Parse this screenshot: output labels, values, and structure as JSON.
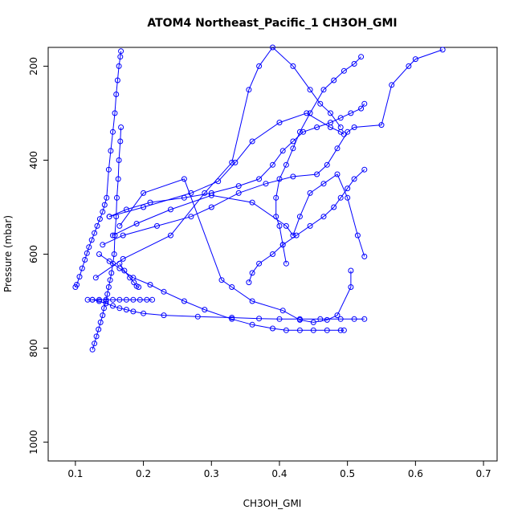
{
  "chart_data": {
    "type": "line",
    "title": "ATOM4 Northeast_Pacific_1 CH3OH_GMI",
    "xlabel": "CH3OH_GMI",
    "ylabel": "Pressure (mbar)",
    "xlim": [
      0.06,
      0.72
    ],
    "ylim": [
      1040,
      160
    ],
    "y_reversed": true,
    "grid": false,
    "legend": "none",
    "marker": "open-circle",
    "color": "#0000ff",
    "x_ticks": [
      0.1,
      0.2,
      0.3,
      0.4,
      0.5,
      0.6,
      0.7
    ],
    "x_tick_labels": [
      "0.1",
      "0.2",
      "0.3",
      "0.4",
      "0.5",
      "0.6",
      "0.7"
    ],
    "y_ticks": [
      200,
      400,
      600,
      800,
      1000
    ],
    "y_tick_labels": [
      "200",
      "400",
      "600",
      "800",
      "1000"
    ],
    "series": [
      {
        "x": [
          0.1,
          0.102,
          0.106,
          0.11,
          0.114,
          0.117,
          0.12,
          0.124,
          0.128,
          0.132,
          0.136,
          0.14,
          0.143,
          0.146,
          0.149,
          0.152,
          0.155,
          0.158,
          0.16,
          0.162,
          0.164,
          0.166,
          0.167
        ],
        "y": [
          670,
          665,
          648,
          630,
          612,
          598,
          585,
          570,
          555,
          540,
          525,
          510,
          495,
          480,
          420,
          380,
          340,
          300,
          260,
          230,
          200,
          180,
          168
        ]
      },
      {
        "x": [
          0.125,
          0.128,
          0.131,
          0.134,
          0.137,
          0.14,
          0.142,
          0.145,
          0.147,
          0.149,
          0.151,
          0.153,
          0.155,
          0.157,
          0.158,
          0.16,
          0.161,
          0.163,
          0.164,
          0.166,
          0.167
        ],
        "y": [
          803,
          790,
          775,
          760,
          745,
          730,
          715,
          700,
          685,
          670,
          655,
          640,
          620,
          600,
          560,
          520,
          480,
          440,
          400,
          360,
          330
        ]
      },
      {
        "x": [
          0.118,
          0.125,
          0.135,
          0.145,
          0.155,
          0.165,
          0.175,
          0.185,
          0.195,
          0.205,
          0.213
        ],
        "y": [
          697,
          697,
          697,
          697,
          697,
          697,
          697,
          697,
          697,
          697,
          697
        ]
      },
      {
        "x": [
          0.165,
          0.172,
          0.18,
          0.186,
          0.19,
          0.193
        ],
        "y": [
          620,
          635,
          650,
          660,
          668,
          670
        ]
      },
      {
        "x": [
          0.125,
          0.135,
          0.145,
          0.155,
          0.165,
          0.175,
          0.185,
          0.2,
          0.23,
          0.28,
          0.33,
          0.37,
          0.4,
          0.43,
          0.46,
          0.49,
          0.51,
          0.525
        ],
        "y": [
          697,
          700,
          705,
          710,
          715,
          718,
          722,
          726,
          730,
          733,
          735,
          737,
          738,
          738,
          738,
          738,
          738,
          738
        ]
      },
      {
        "x": [
          0.135,
          0.15,
          0.165,
          0.185,
          0.21,
          0.23,
          0.26,
          0.29,
          0.33,
          0.36,
          0.39,
          0.41,
          0.43,
          0.45,
          0.47,
          0.49,
          0.495
        ],
        "y": [
          600,
          615,
          630,
          650,
          665,
          680,
          700,
          718,
          738,
          750,
          758,
          762,
          762,
          762,
          762,
          762,
          762
        ]
      },
      {
        "x": [
          0.15,
          0.2,
          0.27,
          0.31,
          0.335,
          0.36,
          0.4,
          0.44,
          0.475,
          0.49,
          0.495
        ],
        "y": [
          520,
          500,
          470,
          445,
          405,
          360,
          320,
          300,
          330,
          340,
          345
        ]
      },
      {
        "x": [
          0.13,
          0.17,
          0.24,
          0.29,
          0.33,
          0.355,
          0.37,
          0.39,
          0.42,
          0.445,
          0.46,
          0.475,
          0.49
        ],
        "y": [
          650,
          610,
          560,
          470,
          405,
          250,
          200,
          160,
          200,
          250,
          280,
          300,
          330
        ]
      },
      {
        "x": [
          0.165,
          0.2,
          0.26,
          0.315,
          0.33,
          0.36,
          0.405,
          0.43,
          0.45,
          0.47,
          0.485,
          0.505,
          0.505
        ],
        "y": [
          540,
          470,
          440,
          655,
          670,
          700,
          720,
          740,
          745,
          740,
          730,
          670,
          635
        ]
      },
      {
        "x": [
          0.155,
          0.19,
          0.24,
          0.3,
          0.36,
          0.41,
          0.42,
          0.43,
          0.445,
          0.465,
          0.485,
          0.5,
          0.515,
          0.525
        ],
        "y": [
          560,
          535,
          505,
          475,
          490,
          540,
          560,
          520,
          470,
          450,
          430,
          480,
          560,
          605
        ]
      },
      {
        "x": [
          0.14,
          0.17,
          0.22,
          0.27,
          0.3,
          0.34,
          0.38,
          0.42,
          0.455,
          0.47,
          0.485,
          0.5,
          0.51,
          0.55,
          0.565,
          0.59,
          0.6,
          0.64
        ],
        "y": [
          580,
          560,
          540,
          520,
          500,
          470,
          450,
          435,
          430,
          410,
          375,
          340,
          330,
          325,
          240,
          200,
          185,
          165
        ]
      },
      {
        "x": [
          0.15,
          0.175,
          0.21,
          0.26,
          0.3,
          0.34,
          0.37,
          0.39,
          0.405,
          0.42,
          0.435,
          0.455,
          0.475,
          0.49,
          0.505,
          0.52,
          0.525
        ],
        "y": [
          520,
          505,
          490,
          480,
          470,
          455,
          440,
          410,
          380,
          360,
          340,
          330,
          320,
          310,
          300,
          290,
          280
        ]
      },
      {
        "x": [
          0.41,
          0.405,
          0.4,
          0.395,
          0.395,
          0.4,
          0.41,
          0.42,
          0.43,
          0.445,
          0.465,
          0.48,
          0.495,
          0.51,
          0.52
        ],
        "y": [
          620,
          580,
          540,
          520,
          480,
          440,
          410,
          375,
          340,
          300,
          250,
          230,
          210,
          195,
          180
        ]
      },
      {
        "x": [
          0.355,
          0.36,
          0.37,
          0.39,
          0.405,
          0.425,
          0.445,
          0.465,
          0.48,
          0.49,
          0.5,
          0.51,
          0.525
        ],
        "y": [
          660,
          640,
          620,
          600,
          580,
          560,
          540,
          520,
          500,
          480,
          460,
          440,
          420
        ]
      }
    ]
  }
}
